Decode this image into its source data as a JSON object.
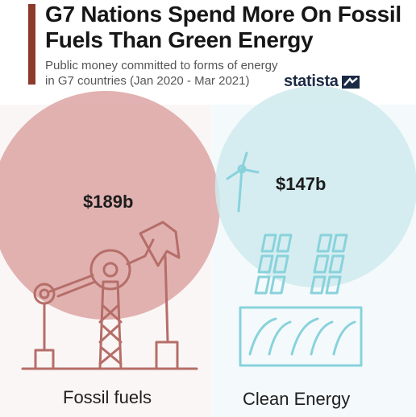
{
  "header": {
    "title": "G7 Nations Spend More On Fossil Fuels Than Green Energy",
    "subtitle": "Public money committed to forms of energy in G7 countries (Jan 2020 - Mar 2021)",
    "brand": "statista",
    "accent_color": "#8b3a2b"
  },
  "chart_data": {
    "type": "bubble",
    "unit": "$b",
    "categories": [
      "Fossil fuels",
      "Clean Energy"
    ],
    "values": [
      189,
      147
    ],
    "value_labels": [
      "$189b",
      "$147b"
    ],
    "colors": [
      "#dca5a3",
      "#cfeaed"
    ],
    "icons": [
      "oil-pumpjack-icon",
      "solar-wind-icon"
    ]
  }
}
